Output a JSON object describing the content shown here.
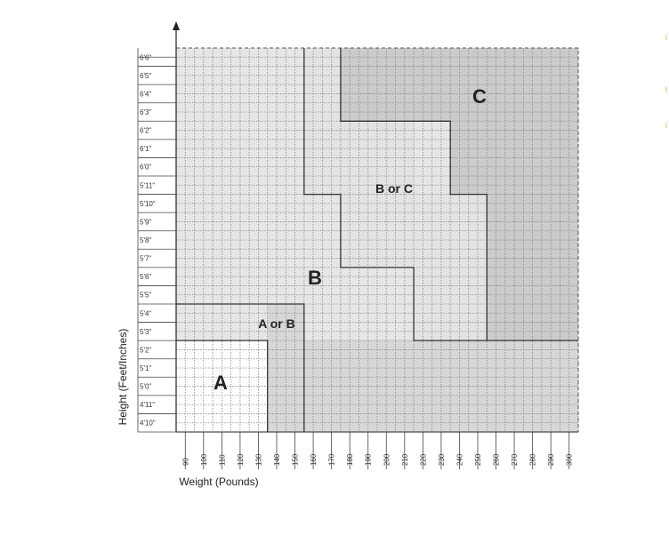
{
  "chart_data": {
    "type": "heatmap",
    "xlabel": "Weight (Pounds)",
    "ylabel": "Height (Feet/Inches)",
    "xlim": [
      85,
      305
    ],
    "x_ticks": [
      90,
      100,
      110,
      120,
      130,
      140,
      150,
      160,
      170,
      180,
      190,
      200,
      210,
      220,
      230,
      240,
      250,
      260,
      270,
      280,
      290,
      300
    ],
    "x_tick_labels": [
      "90",
      "100",
      "110",
      "120",
      "130",
      "140",
      "150",
      "160",
      "170",
      "180",
      "190",
      "200",
      "210",
      "220",
      "230",
      "240",
      "250",
      "260",
      "270",
      "280",
      "290",
      "300"
    ],
    "y_ticks_inches": [
      58,
      59,
      60,
      61,
      62,
      63,
      64,
      65,
      66,
      67,
      68,
      69,
      70,
      71,
      72,
      73,
      74,
      75,
      76,
      77,
      78
    ],
    "y_tick_labels": [
      "4'10\"",
      "4'11\"",
      "5'0\"",
      "5'1\"",
      "5'2\"",
      "5'3\"",
      "5'4\"",
      "5'5\"",
      "5'6\"",
      "5'7\"",
      "5'8\"",
      "5'9\"",
      "5'10\"",
      "5'11\"",
      "6'0\"",
      "6'1\"",
      "6'2\"",
      "6'3\"",
      "6'4\"",
      "6'5\"",
      "6'6\""
    ],
    "colors": {
      "A": "#ffffff",
      "A or B": "#e6e6e6",
      "B": "#e6e6e6",
      "B or C": "#e3e3e3",
      "C": "#cbcbcb",
      "A/B region right": "#d7d7d7",
      "grid": "#8a8a8a",
      "boundary": "#333333"
    },
    "zones": [
      {
        "label": "A",
        "weight_range": [
          85,
          135
        ],
        "height_range_in": [
          57.5,
          62.5
        ]
      },
      {
        "label": "A or B",
        "weight_range": [
          85,
          155
        ],
        "height_range_in": [
          57.5,
          64.5
        ]
      },
      {
        "label": "B",
        "weight_range": [
          85,
          305
        ],
        "height_range_in": [
          57.5,
          78.5
        ]
      },
      {
        "label": "B or C",
        "weight_range": [
          155,
          255
        ],
        "height_range_in": [
          62.5,
          78.5
        ]
      },
      {
        "label": "C",
        "weight_range": [
          175,
          305
        ],
        "height_range_in": [
          62.5,
          78.5
        ]
      }
    ]
  }
}
